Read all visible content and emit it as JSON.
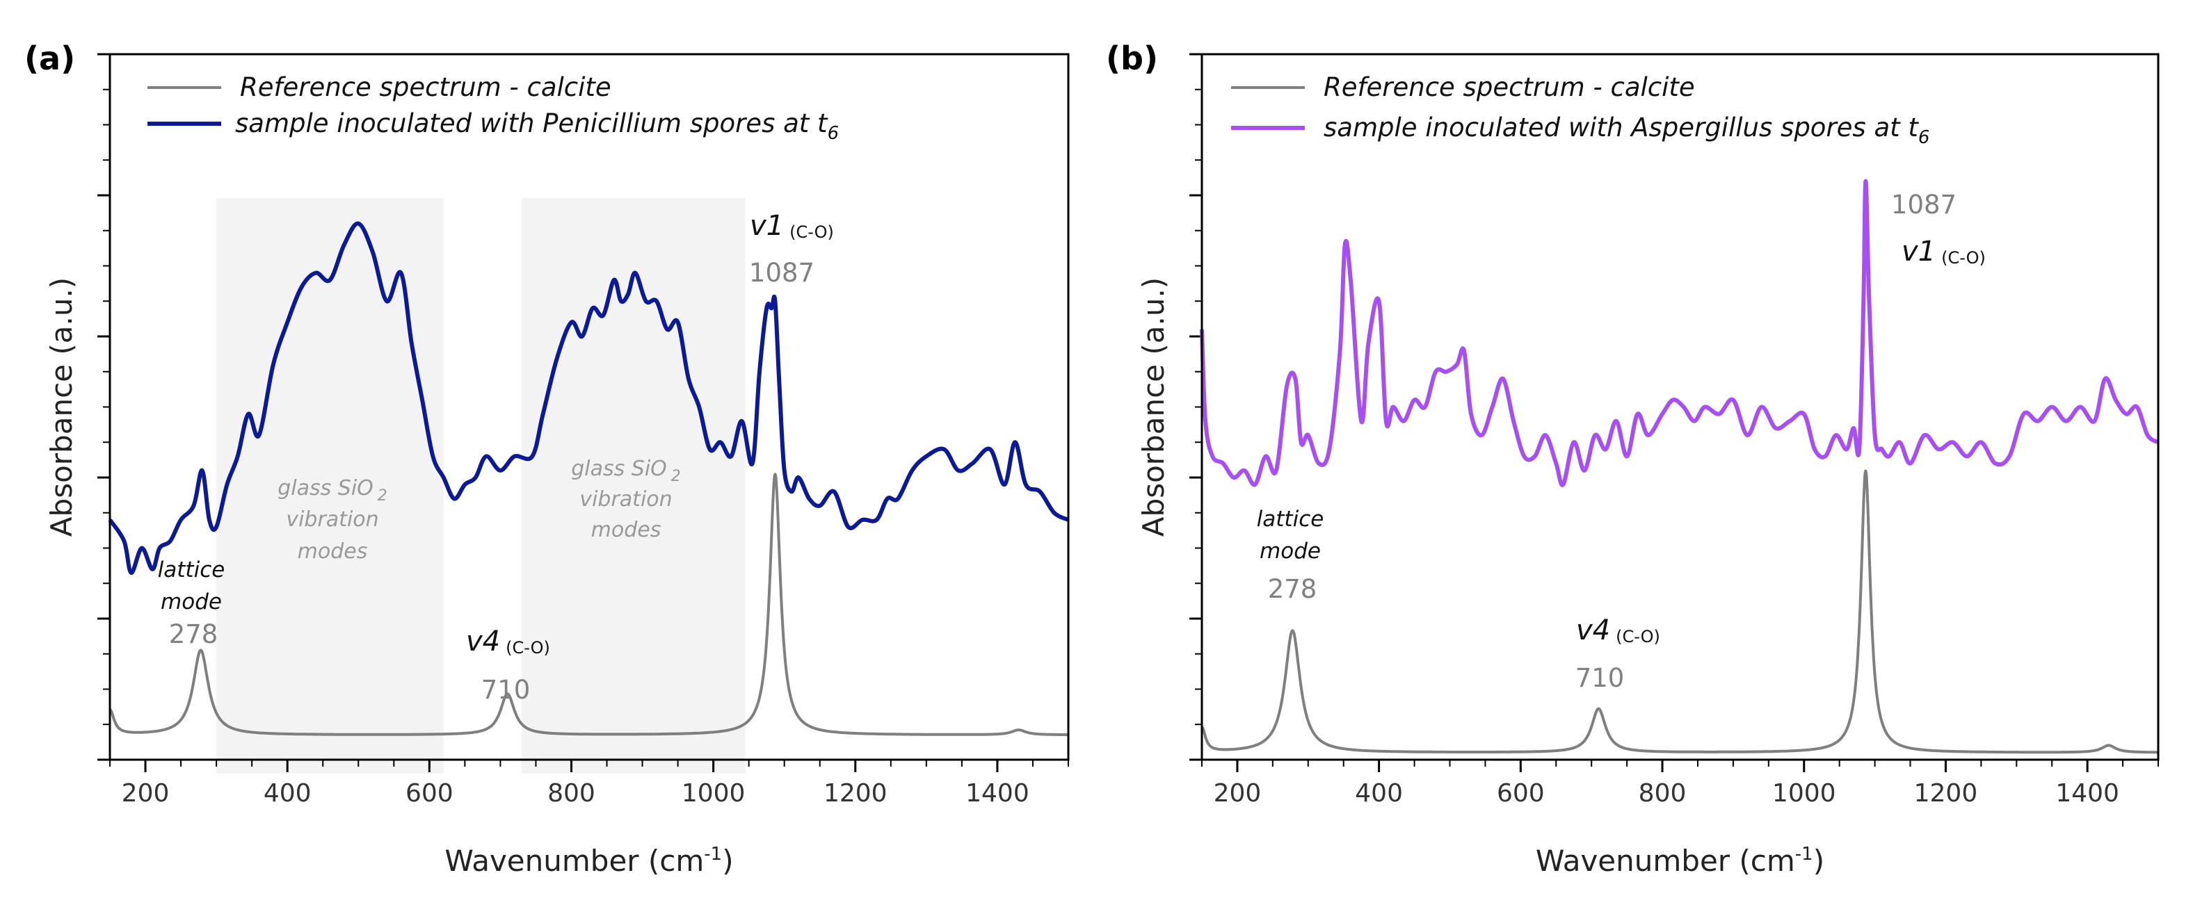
{
  "chart_data": [
    {
      "panel": "(a)",
      "type": "line",
      "xlabel": "Wavenumber (cm",
      "xlabel_sup": "-1",
      "xlabel_end": ")",
      "ylabel": "Absorbance (a.u.)",
      "xlim": [
        150,
        1500
      ],
      "ylim": [
        0,
        10
      ],
      "xticks": [
        200,
        400,
        600,
        800,
        1000,
        1200,
        1400
      ],
      "xtick_labels": [
        "200",
        "400",
        "600",
        "800",
        "1000",
        "1200",
        "1400"
      ],
      "legend": {
        "position": "top-left",
        "entries": [
          {
            "label": "Reference spectrum - calcite",
            "color": "#7f7f7f"
          },
          {
            "label": "sample inoculated with Penicillium spores at t",
            "sub": "6",
            "color": "#0d1a96"
          }
        ]
      },
      "shaded_bands": [
        {
          "x": [
            300,
            620
          ],
          "label_lines": [
            "glass SiO",
            "vibration",
            "modes"
          ],
          "sub": "2"
        },
        {
          "x": [
            730,
            1045
          ],
          "label_lines": [
            "glass SiO",
            "vibration",
            "modes"
          ],
          "sub": "2"
        }
      ],
      "annotations": {
        "lattice_line1": "lattice",
        "lattice_line2": "mode",
        "lattice_value": "278",
        "v4_name": "v4",
        "v4_sub": "(C-O)",
        "v4_value": "710",
        "v1_name": "v1",
        "v1_sub": "(C-O)",
        "v1_value": "1087"
      },
      "series": [
        {
          "name": "Reference spectrum - calcite",
          "color": "#7f7f7f",
          "baseline": 0.35,
          "peaks": [
            [
              150,
              0.35,
              7
            ],
            [
              278,
              1.2,
              13
            ],
            [
              710,
              0.58,
              12
            ],
            [
              1087,
              3.7,
              9
            ],
            [
              1430,
              0.07,
              12
            ]
          ]
        },
        {
          "name": "sample inoculated with Penicillium spores at t6",
          "color": "#0d1a96",
          "x": [
            150,
            170,
            180,
            195,
            210,
            220,
            235,
            250,
            268,
            280,
            290,
            300,
            315,
            330,
            345,
            360,
            380,
            400,
            420,
            440,
            460,
            480,
            500,
            520,
            540,
            560,
            575,
            590,
            605,
            620,
            635,
            650,
            665,
            680,
            700,
            720,
            745,
            760,
            780,
            800,
            815,
            830,
            845,
            860,
            870,
            880,
            890,
            905,
            920,
            935,
            950,
            965,
            980,
            995,
            1010,
            1025,
            1040,
            1055,
            1065,
            1075,
            1082,
            1087,
            1093,
            1100,
            1110,
            1120,
            1135,
            1150,
            1170,
            1190,
            1210,
            1230,
            1245,
            1260,
            1280,
            1300,
            1325,
            1345,
            1365,
            1390,
            1410,
            1425,
            1440,
            1460,
            1480,
            1500
          ],
          "y": [
            3.4,
            3.1,
            2.65,
            3.0,
            2.7,
            3.0,
            3.1,
            3.4,
            3.6,
            4.1,
            3.4,
            3.3,
            3.9,
            4.3,
            4.9,
            4.6,
            5.6,
            6.2,
            6.7,
            6.9,
            6.8,
            7.3,
            7.6,
            7.2,
            6.5,
            6.9,
            5.9,
            5.1,
            4.3,
            4.0,
            3.7,
            3.9,
            4.0,
            4.3,
            4.1,
            4.3,
            4.3,
            4.9,
            5.7,
            6.2,
            6.0,
            6.4,
            6.3,
            6.8,
            6.5,
            6.6,
            6.9,
            6.5,
            6.5,
            6.1,
            6.2,
            5.4,
            5.0,
            4.4,
            4.5,
            4.3,
            4.8,
            4.2,
            5.5,
            6.4,
            6.4,
            6.5,
            5.3,
            4.1,
            3.8,
            4.0,
            3.7,
            3.6,
            3.8,
            3.3,
            3.4,
            3.4,
            3.7,
            3.7,
            4.1,
            4.3,
            4.4,
            4.1,
            4.2,
            4.4,
            3.9,
            4.5,
            3.9,
            3.8,
            3.5,
            3.4
          ]
        }
      ]
    },
    {
      "panel": "(b)",
      "type": "line",
      "xlabel": "Wavenumber (cm",
      "xlabel_sup": "-1",
      "xlabel_end": ")",
      "ylabel": "Absorbance (a.u.)",
      "xlim": [
        150,
        1500
      ],
      "ylim": [
        0,
        10
      ],
      "xticks": [
        200,
        400,
        600,
        800,
        1000,
        1200,
        1400
      ],
      "xtick_labels": [
        "200",
        "400",
        "600",
        "800",
        "1000",
        "1200",
        "1400"
      ],
      "legend": {
        "position": "top-left",
        "entries": [
          {
            "label": "Reference spectrum - calcite",
            "color": "#7f7f7f"
          },
          {
            "label": "sample inoculated with Aspergillus spores at t",
            "sub": "6",
            "color": "#a74ff2"
          }
        ]
      },
      "annotations": {
        "lattice_line1": "lattice",
        "lattice_line2": "mode",
        "lattice_value": "278",
        "v4_name": "v4",
        "v4_sub": "(C-O)",
        "v4_value": "710",
        "v1_name": "v1",
        "v1_sub": "(C-O)",
        "v1_value": "1087"
      },
      "series": [
        {
          "name": "Reference spectrum - calcite",
          "color": "#7f7f7f",
          "baseline": 0.1,
          "peaks": [
            [
              150,
              0.35,
              6
            ],
            [
              278,
              1.73,
              13
            ],
            [
              710,
              0.62,
              12
            ],
            [
              1087,
              4.0,
              8
            ],
            [
              1430,
              0.1,
              12
            ]
          ]
        },
        {
          "name": "sample inoculated with Aspergillus spores at t6",
          "color": "#a74ff2",
          "x": [
            150,
            155,
            165,
            180,
            195,
            210,
            225,
            240,
            255,
            270,
            282,
            290,
            300,
            315,
            330,
            345,
            352,
            360,
            375,
            385,
            400,
            410,
            420,
            435,
            450,
            465,
            480,
            495,
            510,
            520,
            530,
            545,
            560,
            575,
            590,
            605,
            620,
            635,
            650,
            660,
            675,
            690,
            705,
            720,
            735,
            750,
            765,
            780,
            800,
            815,
            830,
            845,
            860,
            880,
            900,
            920,
            940,
            960,
            980,
            1000,
            1015,
            1030,
            1045,
            1060,
            1070,
            1078,
            1084,
            1087,
            1092,
            1100,
            1110,
            1120,
            1135,
            1150,
            1170,
            1190,
            1210,
            1230,
            1250,
            1270,
            1290,
            1310,
            1330,
            1350,
            1370,
            1390,
            1410,
            1425,
            1440,
            1455,
            1470,
            1485,
            1500
          ],
          "y": [
            6.1,
            4.8,
            4.3,
            4.2,
            4.0,
            4.1,
            3.9,
            4.3,
            4.1,
            5.3,
            5.4,
            4.5,
            4.6,
            4.2,
            4.4,
            5.8,
            7.3,
            6.8,
            4.8,
            5.9,
            6.5,
            4.8,
            5.0,
            4.8,
            5.1,
            5.0,
            5.5,
            5.5,
            5.6,
            5.8,
            4.9,
            4.6,
            5.0,
            5.4,
            4.8,
            4.3,
            4.3,
            4.6,
            4.2,
            3.9,
            4.5,
            4.1,
            4.6,
            4.4,
            4.8,
            4.3,
            4.9,
            4.6,
            4.9,
            5.1,
            5.0,
            4.8,
            5.0,
            4.9,
            5.1,
            4.6,
            5.0,
            4.7,
            4.8,
            4.9,
            4.4,
            4.3,
            4.6,
            4.4,
            4.7,
            4.4,
            6.5,
            8.2,
            6.5,
            4.6,
            4.4,
            4.3,
            4.5,
            4.2,
            4.6,
            4.4,
            4.5,
            4.3,
            4.5,
            4.2,
            4.3,
            4.9,
            4.8,
            5.0,
            4.8,
            5.0,
            4.8,
            5.4,
            5.1,
            4.9,
            5.0,
            4.6,
            4.5
          ]
        }
      ]
    }
  ]
}
